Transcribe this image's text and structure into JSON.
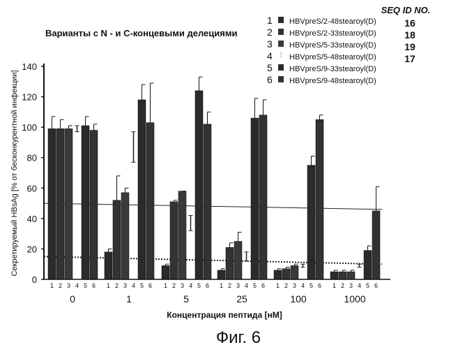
{
  "figure_caption": "Фиг. 6",
  "seq_header": "SEQ ID NO.",
  "chart_data": {
    "type": "bar",
    "title": "Варианты с N - и С-концевыми делециями",
    "xlabel": "Концентрация пептида [нМ]",
    "ylabel": "Секретируемый HBsAg [% от бесконкурентной инфекции]",
    "ylim": [
      0,
      140
    ],
    "yticks": [
      0,
      20,
      40,
      60,
      80,
      100,
      120,
      140
    ],
    "categories": [
      "0",
      "1",
      "5",
      "25",
      "100",
      "1000"
    ],
    "bar_indices": [
      "1",
      "2",
      "3",
      "4",
      "5",
      "6"
    ],
    "legend_placement": "top-right",
    "series": [
      {
        "name": "HBVpreS/2-48stearoyl(D)",
        "legend_number": "1",
        "seq_id": "16",
        "color": "#2b2b2b",
        "values": [
          99,
          18,
          9,
          6,
          6,
          5
        ],
        "errors": [
          8,
          2,
          1,
          1,
          1,
          1
        ]
      },
      {
        "name": "HBVpreS/2-33stearoyl(D)",
        "legend_number": "2",
        "seq_id": "18",
        "color": "#333333",
        "values": [
          99,
          52,
          51,
          21,
          7,
          5
        ],
        "errors": [
          6,
          16,
          1,
          3,
          1,
          1
        ]
      },
      {
        "name": "HBVpreS/5-33stearoyl(D)",
        "legend_number": "3",
        "seq_id": "19",
        "color": "#3a3a3a",
        "values": [
          99,
          57,
          58,
          25,
          9,
          5
        ],
        "errors": [
          2,
          3,
          0,
          6,
          1,
          1
        ]
      },
      {
        "name": "HBVpreS/5-48stearoyl(D)",
        "legend_number": "4",
        "seq_id": "17",
        "color": "#aaaaaa",
        "values": [
          99,
          87,
          37,
          15,
          9,
          9
        ],
        "errors": [
          2,
          10,
          5,
          3,
          1,
          1
        ]
      },
      {
        "name": "HBVpreS/9-33stearoyl(D)",
        "legend_number": "5",
        "color": "#2b2b2b",
        "values": [
          101,
          118,
          124,
          106,
          75,
          19
        ],
        "errors": [
          6,
          10,
          9,
          13,
          6,
          3
        ]
      },
      {
        "name": "HBVpreS/9-48stearoyl(D)",
        "legend_number": "6",
        "color": "#333333",
        "values": [
          98,
          103,
          102,
          108,
          105,
          45
        ],
        "errors": [
          4,
          26,
          8,
          10,
          3,
          16
        ]
      }
    ],
    "reference_lines": [
      {
        "style": "solid",
        "y_start": 50,
        "y_end": 46
      },
      {
        "style": "dotted",
        "y_start": 15,
        "y_end": 10
      }
    ]
  }
}
